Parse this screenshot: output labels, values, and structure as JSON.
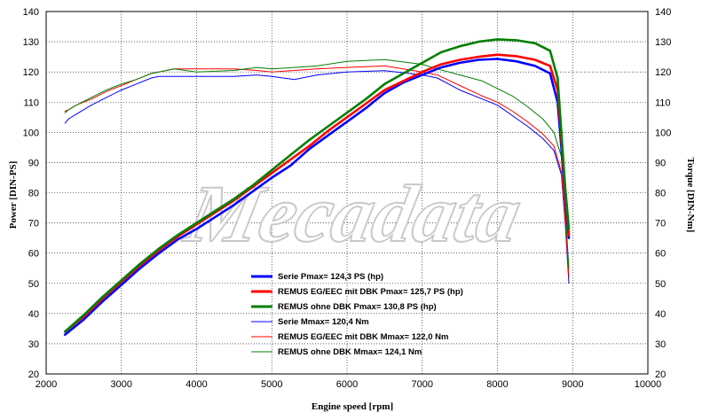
{
  "chart_data": {
    "type": "line",
    "xlabel": "Engine speed [rpm]",
    "ylabel_left": "Power [DIN-PS]",
    "ylabel_right": "Torque [DIN-Nm]",
    "xlim": [
      2000,
      10000
    ],
    "ylim": [
      20,
      140
    ],
    "x_ticks": [
      2000,
      3000,
      4000,
      5000,
      6000,
      7000,
      8000,
      9000,
      10000
    ],
    "y_ticks": [
      20,
      30,
      40,
      50,
      60,
      70,
      80,
      90,
      100,
      110,
      120,
      130,
      140
    ],
    "grid": true,
    "watermark": "Mecadata",
    "legend": [
      {
        "label": "Serie Pmax= 124,3 PS (hp)",
        "color": "#0000ff",
        "width": 3
      },
      {
        "label": "REMUS EG/EEC mit DBK Pmax=  125,7 PS (hp)",
        "color": "#ff0000",
        "width": 3
      },
      {
        "label": "REMUS ohne DBK Pmax= 130,8 PS (hp)",
        "color": "#008000",
        "width": 3
      },
      {
        "label": "Serie Mmax= 120,4 Nm",
        "color": "#0000ff",
        "width": 1
      },
      {
        "label": "REMUS EG/EEC mit DBK Mmax= 122,0 Nm",
        "color": "#ff0000",
        "width": 1
      },
      {
        "label": "REMUS ohne DBK Mmax= 124,1 Nm",
        "color": "#008000",
        "width": 1
      }
    ],
    "series": [
      {
        "name": "Serie Pmax= 124,3 PS (hp)",
        "color": "#0000ff",
        "width": 2.6,
        "x": [
          2250,
          2500,
          2750,
          3000,
          3250,
          3500,
          3750,
          4000,
          4250,
          4500,
          4750,
          5000,
          5250,
          5500,
          5750,
          6000,
          6250,
          6500,
          6750,
          7000,
          7250,
          7500,
          7750,
          8000,
          8250,
          8500,
          8700,
          8800,
          8850,
          8900,
          8950
        ],
        "y": [
          33,
          38,
          44,
          49.5,
          55,
          60,
          64.5,
          68,
          72,
          76,
          80.5,
          85,
          89,
          94.5,
          99,
          103.5,
          108,
          113,
          116.5,
          119,
          121.5,
          123,
          124,
          124.3,
          123.5,
          122,
          119.5,
          110,
          95,
          78,
          65
        ]
      },
      {
        "name": "REMUS EG/EEC mit DBK Pmax=  125,7 PS (hp)",
        "color": "#ff0000",
        "width": 2.6,
        "x": [
          2250,
          2500,
          2750,
          3000,
          3250,
          3500,
          3750,
          4000,
          4250,
          4500,
          4750,
          5000,
          5250,
          5500,
          5750,
          6000,
          6250,
          6500,
          6750,
          7000,
          7250,
          7500,
          7750,
          8000,
          8250,
          8500,
          8700,
          8800,
          8850,
          8900,
          8950
        ],
        "y": [
          34,
          39,
          45,
          50.5,
          56,
          61,
          65.5,
          69.5,
          73.5,
          77.5,
          82,
          86.5,
          91,
          95.5,
          100.5,
          105,
          109.5,
          114,
          117,
          120,
          122.5,
          124,
          125,
          125.7,
          125.2,
          124,
          122,
          114,
          98,
          80,
          66
        ]
      },
      {
        "name": "REMUS ohne DBK Pmax= 130,8 PS (hp)",
        "color": "#008000",
        "width": 2.6,
        "x": [
          2250,
          2500,
          2750,
          3000,
          3250,
          3500,
          3750,
          4000,
          4250,
          4500,
          4750,
          5000,
          5250,
          5500,
          5750,
          6000,
          6250,
          6500,
          6750,
          7000,
          7250,
          7500,
          7750,
          8000,
          8250,
          8500,
          8700,
          8800,
          8850,
          8900,
          8950
        ],
        "y": [
          34,
          39.5,
          45.5,
          51,
          56.5,
          61.5,
          66,
          70,
          74,
          78,
          82.5,
          87.5,
          92.5,
          97.5,
          102,
          106.5,
          111,
          116,
          119.5,
          123,
          126.5,
          128.5,
          130,
          130.8,
          130.5,
          129.5,
          127,
          118,
          100,
          82,
          68
        ]
      },
      {
        "name": "Serie Mmax= 120,4 Nm",
        "color": "#0000ff",
        "width": 1,
        "x": [
          2250,
          2300,
          2400,
          2600,
          2800,
          3000,
          3200,
          3400,
          3500,
          3700,
          4000,
          4500,
          4800,
          5000,
          5300,
          5600,
          6000,
          6500,
          7000,
          7200,
          7500,
          7800,
          8000,
          8200,
          8400,
          8600,
          8750,
          8850,
          8900,
          8950
        ],
        "y": [
          103,
          104.5,
          106,
          109,
          111.5,
          114,
          116,
          118,
          118.5,
          118.5,
          118.5,
          118.5,
          119,
          118.5,
          117.5,
          119,
          120,
          120.4,
          119,
          118,
          114,
          111,
          109,
          105.5,
          102,
          98,
          94,
          86,
          70,
          50
        ]
      },
      {
        "name": "REMUS EG/EEC mit DBK Mmax= 122,0 Nm",
        "color": "#ff0000",
        "width": 1,
        "x": [
          2250,
          2300,
          2400,
          2600,
          2800,
          3000,
          3200,
          3400,
          3500,
          3700,
          4000,
          4500,
          4800,
          5000,
          5300,
          5600,
          6000,
          6500,
          7000,
          7200,
          7500,
          7800,
          8000,
          8200,
          8400,
          8600,
          8750,
          8850,
          8900,
          8950
        ],
        "y": [
          107,
          107.5,
          109,
          111,
          113.5,
          115.5,
          117.5,
          119.5,
          120,
          121,
          121,
          121,
          120.5,
          120,
          120.5,
          121,
          121.5,
          122,
          120,
          119,
          115.5,
          112,
          110,
          107,
          103.5,
          99.5,
          95.5,
          87,
          71,
          52
        ]
      },
      {
        "name": "REMUS ohne DBK Mmax= 124,1 Nm",
        "color": "#008000",
        "width": 1,
        "x": [
          2250,
          2300,
          2400,
          2600,
          2800,
          3000,
          3200,
          3400,
          3500,
          3700,
          4000,
          4500,
          4800,
          5000,
          5300,
          5600,
          6000,
          6500,
          7000,
          7200,
          7500,
          7800,
          8000,
          8200,
          8400,
          8600,
          8750,
          8850,
          8900,
          8950
        ],
        "y": [
          106.5,
          107.5,
          109,
          111.5,
          114,
          116,
          117.5,
          119.5,
          120,
          121,
          120,
          120.5,
          121.5,
          121,
          121.5,
          122,
          123.5,
          124.1,
          122.5,
          121,
          119,
          117,
          114.5,
          112,
          108.5,
          104.5,
          100,
          92,
          75,
          55
        ]
      }
    ]
  }
}
